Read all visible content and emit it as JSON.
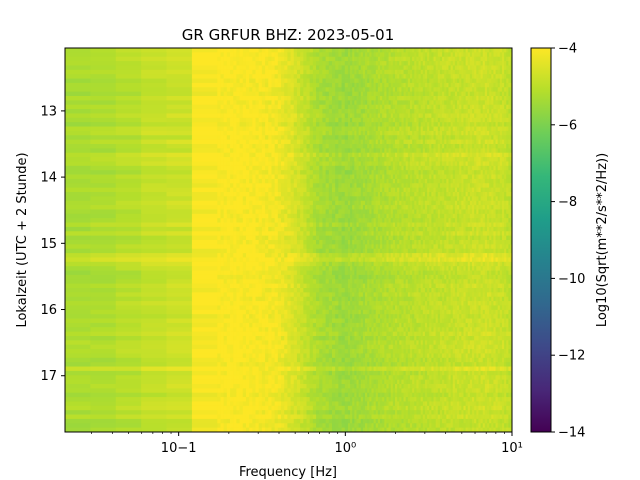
{
  "chart_data": {
    "type": "heatmap",
    "title": "GR GRFUR  BHZ: 2023-05-01",
    "xlabel": "Frequency [Hz]",
    "ylabel": "Lokalzeit (UTC + 2 Stunde)",
    "colorbar_label": "Log10(Sqrt(m**2/s**2/Hz))",
    "x_scale": "log",
    "xlim": [
      0.0208,
      10
    ],
    "x_ticks": [
      {
        "value": 0.1,
        "label": "10−1"
      },
      {
        "value": 1,
        "label": "10⁰"
      },
      {
        "value": 10,
        "label": "10¹"
      }
    ],
    "ylim": [
      12.05,
      17.85
    ],
    "y_inverted": true,
    "y_ticks": [
      13,
      14,
      15,
      16,
      17
    ],
    "color_range": [
      -14,
      -4
    ],
    "colorbar_ticks": [
      -4,
      -6,
      -8,
      -10,
      -12,
      -14
    ],
    "colormap": "viridis",
    "colormap_stops": [
      "#440154",
      "#482878",
      "#3e4989",
      "#31688e",
      "#26828e",
      "#1f9e89",
      "#35b779",
      "#6ece58",
      "#b5de2b",
      "#fde725"
    ],
    "frequency_profile": {
      "frequency_hz": [
        0.0208,
        0.04,
        0.06,
        0.09,
        0.12,
        0.135,
        0.2,
        0.3,
        0.4,
        0.5,
        0.7,
        1.0,
        2.0,
        4.0,
        7.0,
        9.0,
        10.0
      ],
      "log10_amplitude": [
        -5.3,
        -5.2,
        -4.95,
        -4.8,
        -4.7,
        -4.05,
        -4.0,
        -4.05,
        -4.2,
        -4.6,
        -5.3,
        -5.5,
        -5.1,
        -4.9,
        -4.75,
        -4.85,
        -5.0
      ]
    },
    "time_events": [
      {
        "time": 13.65,
        "log10_amplitude_offset": 0.25
      },
      {
        "time": 15.22,
        "log10_amplitude_offset": 0.4
      },
      {
        "time": 16.88,
        "log10_amplitude_offset": 0.3
      }
    ]
  }
}
